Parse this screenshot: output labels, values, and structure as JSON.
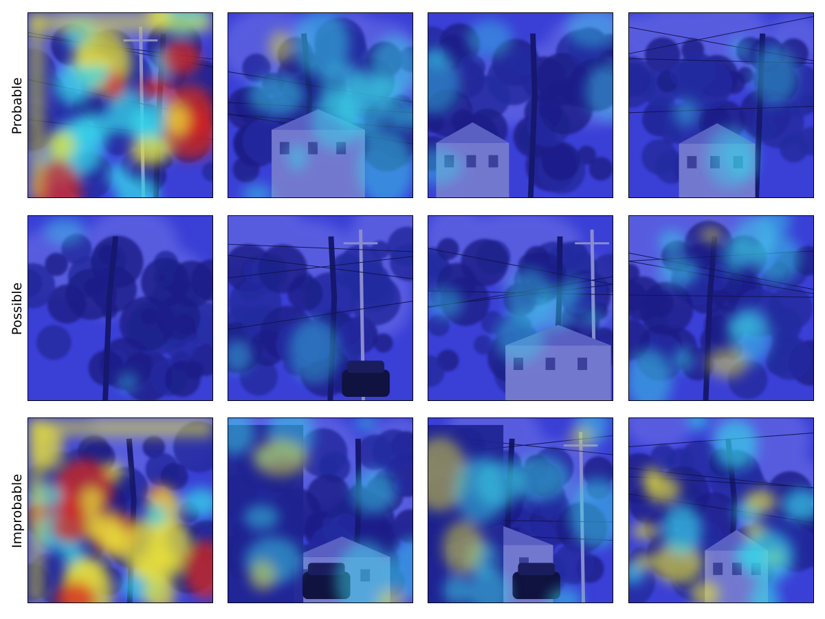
{
  "figure": {
    "row_labels": [
      "Probable",
      "Possible",
      "Improbable"
    ],
    "columns": 4,
    "panels": [
      {
        "row": 0,
        "col": 0,
        "scene": "tree-and-utility-pole",
        "heat": "high"
      },
      {
        "row": 0,
        "col": 1,
        "scene": "bare-tree-house-wires",
        "heat": "medium"
      },
      {
        "row": 0,
        "col": 2,
        "scene": "large-tree-houses",
        "heat": "low"
      },
      {
        "row": 0,
        "col": 3,
        "scene": "tree-house-wires",
        "heat": "low"
      },
      {
        "row": 1,
        "col": 0,
        "scene": "tall-trees-canopy",
        "heat": "none"
      },
      {
        "row": 1,
        "col": 1,
        "scene": "tree-pole-wires-car",
        "heat": "none"
      },
      {
        "row": 1,
        "col": 2,
        "scene": "tree-pole-house",
        "heat": "low"
      },
      {
        "row": 1,
        "col": 3,
        "scene": "tree-wires",
        "heat": "medium"
      },
      {
        "row": 2,
        "col": 0,
        "scene": "dense-foliage",
        "heat": "high"
      },
      {
        "row": 2,
        "col": 1,
        "scene": "street-buildings-car",
        "heat": "medium"
      },
      {
        "row": 2,
        "col": 2,
        "scene": "street-building-pole-car",
        "heat": "medium"
      },
      {
        "row": 2,
        "col": 3,
        "scene": "tree-houses-wires",
        "heat": "medium-high"
      }
    ]
  },
  "colors": {
    "overlay_base": "#3a3fd6",
    "heat_low": "#37d6e8",
    "heat_mid": "#e8e23a",
    "heat_high": "#d8261c"
  }
}
